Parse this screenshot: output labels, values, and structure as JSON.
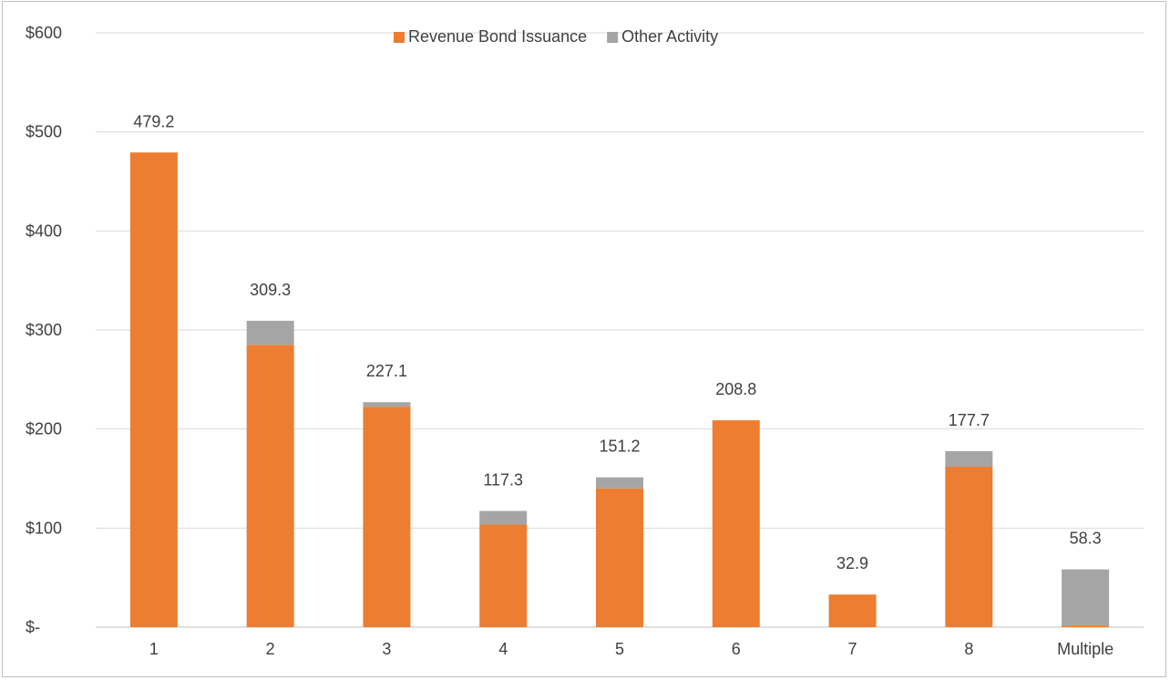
{
  "chart_data": {
    "type": "bar",
    "stacked": true,
    "categories": [
      "1",
      "2",
      "3",
      "4",
      "5",
      "6",
      "7",
      "8",
      "Multiple"
    ],
    "series": [
      {
        "name": "Revenue Bond Issuance",
        "color": "#ED7D31",
        "values": [
          479.2,
          285.0,
          222.5,
          103.5,
          140.0,
          208.8,
          32.9,
          162.0,
          1.5
        ]
      },
      {
        "name": "Other Activity",
        "color": "#A5A5A5",
        "values": [
          0,
          24.3,
          4.6,
          13.8,
          11.2,
          0,
          0,
          15.7,
          56.8
        ]
      }
    ],
    "totals_labels": [
      "479.2",
      "309.3",
      "227.1",
      "117.3",
      "151.2",
      "208.8",
      "32.9",
      "177.7",
      "58.3"
    ],
    "y_ticks": [
      "$-",
      "$100",
      "$200",
      "$300",
      "$400",
      "$500",
      "$600"
    ],
    "ylim": [
      0,
      600
    ],
    "grid": true,
    "legend_position": "top-center",
    "title": "",
    "xlabel": "",
    "ylabel": ""
  }
}
